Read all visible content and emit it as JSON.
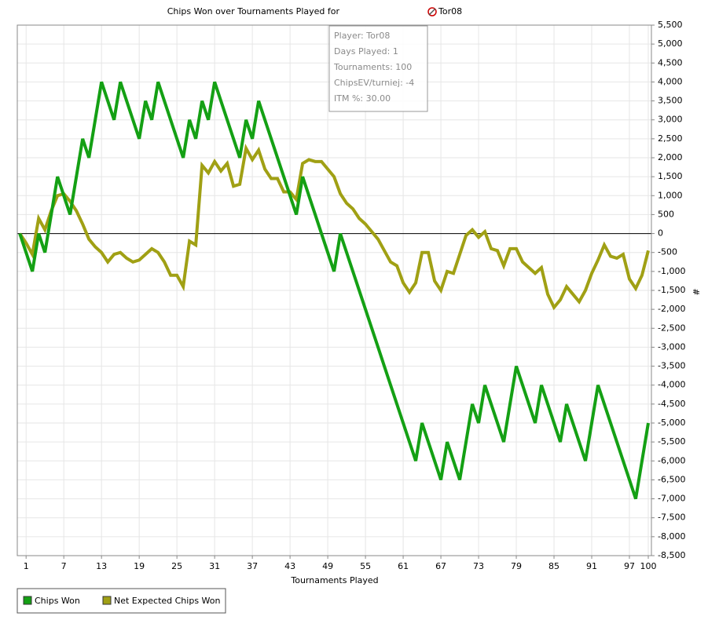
{
  "chart_data": {
    "type": "line",
    "title": "Chips Won over Tournaments Played for",
    "title_player": "Tor08",
    "x_label": "Tournaments Played",
    "y_label": "#",
    "x": [
      0,
      1,
      2,
      3,
      4,
      5,
      6,
      7,
      8,
      9,
      10,
      11,
      12,
      13,
      14,
      15,
      16,
      17,
      18,
      19,
      20,
      21,
      22,
      23,
      24,
      25,
      26,
      27,
      28,
      29,
      30,
      31,
      32,
      33,
      34,
      35,
      36,
      37,
      38,
      39,
      40,
      41,
      42,
      43,
      44,
      45,
      46,
      47,
      48,
      49,
      50,
      51,
      52,
      53,
      54,
      55,
      56,
      57,
      58,
      59,
      60,
      61,
      62,
      63,
      64,
      65,
      66,
      67,
      68,
      69,
      70,
      71,
      72,
      73,
      74,
      75,
      76,
      77,
      78,
      79,
      80,
      81,
      82,
      83,
      84,
      85,
      86,
      87,
      88,
      89,
      90,
      91,
      92,
      93,
      94,
      95,
      96,
      97,
      98,
      99,
      100
    ],
    "series": [
      {
        "name": "Chips Won",
        "color": "#14a014",
        "values": [
          0,
          -500,
          -1000,
          0,
          -500,
          500,
          1500,
          1000,
          500,
          1500,
          2500,
          2000,
          3000,
          4000,
          3500,
          3000,
          4000,
          3500,
          3000,
          2500,
          3500,
          3000,
          4000,
          3500,
          3000,
          2500,
          2000,
          3000,
          2500,
          3500,
          3000,
          4000,
          3500,
          3000,
          2500,
          2000,
          3000,
          2500,
          3500,
          3000,
          2500,
          2000,
          1500,
          1000,
          500,
          1500,
          1000,
          500,
          0,
          -500,
          -1000,
          0,
          -500,
          -1000,
          -1500,
          -2000,
          -2500,
          -3000,
          -3500,
          -4000,
          -4500,
          -5000,
          -5500,
          -6000,
          -5000,
          -5500,
          -6000,
          -6500,
          -5500,
          -6000,
          -6500,
          -5500,
          -4500,
          -5000,
          -4000,
          -4500,
          -5000,
          -5500,
          -4500,
          -3500,
          -4000,
          -4500,
          -5000,
          -4000,
          -4500,
          -5000,
          -5500,
          -4500,
          -5000,
          -5500,
          -6000,
          -5000,
          -4000,
          -4500,
          -5000,
          -5500,
          -6000,
          -6500,
          -7000,
          -6000,
          -5000
        ]
      },
      {
        "name": "Net Expected Chips Won",
        "color": "#a0a014",
        "values": [
          0,
          -250,
          -550,
          400,
          100,
          600,
          1000,
          1050,
          850,
          600,
          250,
          -150,
          -350,
          -500,
          -750,
          -550,
          -500,
          -650,
          -750,
          -700,
          -550,
          -400,
          -500,
          -750,
          -1100,
          -1100,
          -1400,
          -200,
          -300,
          1800,
          1600,
          1900,
          1650,
          1850,
          1250,
          1300,
          2250,
          1950,
          2200,
          1700,
          1450,
          1450,
          1100,
          1100,
          900,
          1850,
          1950,
          1900,
          1900,
          1700,
          1500,
          1050,
          800,
          650,
          400,
          250,
          50,
          -150,
          -450,
          -750,
          -850,
          -1300,
          -1550,
          -1300,
          -500,
          -500,
          -1250,
          -1500,
          -1000,
          -1050,
          -550,
          -50,
          100,
          -100,
          50,
          -400,
          -450,
          -850,
          -400,
          -400,
          -750,
          -900,
          -1050,
          -900,
          -1600,
          -1950,
          -1750,
          -1400,
          -1600,
          -1800,
          -1500,
          -1050,
          -700,
          -300,
          -600,
          -650,
          -550,
          -1200,
          -1450,
          -1100,
          -450
        ]
      }
    ],
    "xlim": [
      -0.4,
      100.5
    ],
    "xticks": [
      1,
      7,
      13,
      19,
      25,
      31,
      37,
      43,
      49,
      55,
      61,
      67,
      73,
      79,
      85,
      91,
      97,
      100
    ],
    "ylim": [
      -8500,
      5500
    ],
    "yticks": [
      {
        "value": -8500,
        "label": "-8,500"
      },
      {
        "value": -8000,
        "label": "-8,000"
      },
      {
        "value": -7500,
        "label": "-7,500"
      },
      {
        "value": -7000,
        "label": "-7,000"
      },
      {
        "value": -6500,
        "label": "-6,500"
      },
      {
        "value": -6000,
        "label": "-6,000"
      },
      {
        "value": -5500,
        "label": "-5,500"
      },
      {
        "value": -5000,
        "label": "-5,000"
      },
      {
        "value": -4500,
        "label": "-4,500"
      },
      {
        "value": -4000,
        "label": "-4,000"
      },
      {
        "value": -3500,
        "label": "-3,500"
      },
      {
        "value": -3000,
        "label": "-3,000"
      },
      {
        "value": -2500,
        "label": "-2,500"
      },
      {
        "value": -2000,
        "label": "-2,000"
      },
      {
        "value": -1500,
        "label": "-1,500"
      },
      {
        "value": -1000,
        "label": "-1,000"
      },
      -500,
      0,
      500,
      {
        "value": 1000,
        "label": "1,000"
      },
      {
        "value": 1500,
        "label": "1,500"
      },
      {
        "value": 2000,
        "label": "2,000"
      },
      {
        "value": 2500,
        "label": "2,500"
      },
      {
        "value": 3000,
        "label": "3,000"
      },
      {
        "value": 3500,
        "label": "3,500"
      },
      {
        "value": 4000,
        "label": "4,000"
      },
      {
        "value": 4500,
        "label": "4,500"
      },
      {
        "value": 5000,
        "label": "5,000"
      },
      {
        "value": 5500,
        "label": "5,500"
      }
    ],
    "grid": true,
    "legend": "bottom-left",
    "tooltip": [
      "Player: Tor08",
      "Days Played: 1",
      "Tournaments: 100",
      "ChipsEV/turniej: -4",
      "ITM %: 30.00"
    ]
  }
}
